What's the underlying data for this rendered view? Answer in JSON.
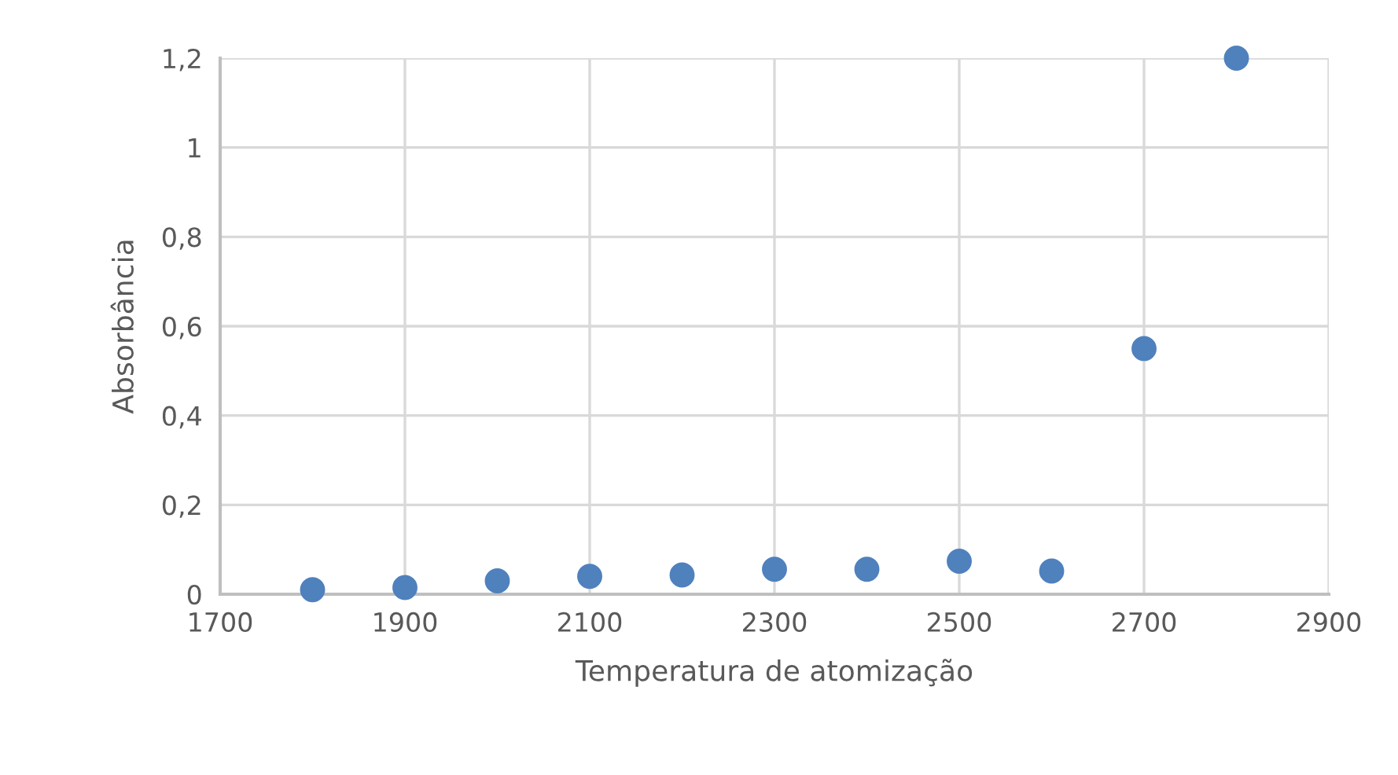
{
  "chart_data": {
    "type": "scatter",
    "xlabel": "Temperatura de atomização",
    "ylabel": "Absorbância",
    "x": [
      1800,
      1900,
      2000,
      2100,
      2200,
      2300,
      2400,
      2500,
      2600,
      2700,
      2800
    ],
    "series": [
      {
        "color": "#4f81bd",
        "values": [
          0.01,
          0.015,
          0.03,
          0.04,
          0.043,
          0.056,
          0.056,
          0.074,
          0.052,
          0.55,
          1.2
        ]
      }
    ],
    "xlim": [
      1700,
      2900
    ],
    "xticks": [
      1700,
      1900,
      2100,
      2300,
      2500,
      2700,
      2900
    ],
    "ylim": [
      0,
      1.2
    ],
    "yticks": [
      0,
      {
        "value": 0.2,
        "label": "0,2"
      },
      {
        "value": 0.4,
        "label": "0,4"
      },
      {
        "value": 0.6,
        "label": "0,6"
      },
      {
        "value": 0.8,
        "label": "0,8"
      },
      1,
      {
        "value": 1.2,
        "label": "1,2"
      }
    ],
    "grid": true,
    "marker": "circle"
  }
}
